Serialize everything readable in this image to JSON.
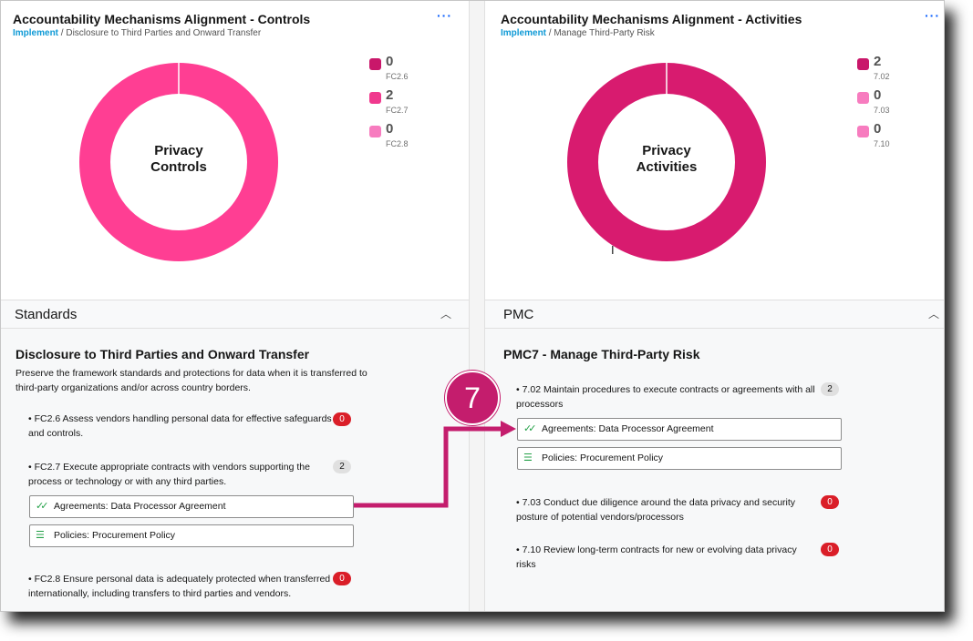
{
  "left_card": {
    "title": "Accountability Mechanisms Alignment - Controls",
    "breadcrumb_link": "Implement",
    "breadcrumb_rest": " / Disclosure to Third Parties and Onward Transfer",
    "menu": "···",
    "donut_label_line1": "Privacy",
    "donut_label_line2": "Controls",
    "legend": [
      {
        "value": "0",
        "label": "FC2.6",
        "color": "#c9176a"
      },
      {
        "value": "2",
        "label": "FC2.7",
        "color": "#f0398e"
      },
      {
        "value": "0",
        "label": "FC2.8",
        "color": "#f77cbf"
      }
    ]
  },
  "right_card": {
    "title": "Accountability Mechanisms Alignment - Activities",
    "breadcrumb_link": "Implement",
    "breadcrumb_rest": " / Manage Third-Party Risk",
    "menu": "···",
    "donut_label_line1": "Privacy",
    "donut_label_line2": "Activities",
    "legend": [
      {
        "value": "2",
        "label": "7.02",
        "color": "#c9176a"
      },
      {
        "value": "0",
        "label": "7.03",
        "color": "#f77cbf"
      },
      {
        "value": "0",
        "label": "7.10",
        "color": "#f77cbf"
      }
    ]
  },
  "chart_data": [
    {
      "type": "pie",
      "categories": [
        "FC2.6",
        "FC2.7",
        "FC2.8"
      ],
      "values": [
        0,
        2,
        0
      ],
      "title": "",
      "colors": [
        "#c9176a",
        "#ff3e93",
        "#f77cbf"
      ]
    },
    {
      "type": "pie",
      "categories": [
        "7.02",
        "7.03",
        "7.10"
      ],
      "values": [
        2,
        0,
        0
      ],
      "title": "",
      "colors": [
        "#d81b6f",
        "#f77cbf",
        "#f77cbf"
      ]
    }
  ],
  "left_section": {
    "header": "Standards",
    "title": "Disclosure to Third Parties and Onward Transfer",
    "desc_line1": "Preserve the framework standards and protections for data when it is transferred to",
    "desc_line2": "third-party organizations and/or across country borders.",
    "items": [
      {
        "line1": "• FC2.6 Assess vendors handling personal data for effective safeguards",
        "line2": "and controls.",
        "count": "0"
      },
      {
        "line1": "• FC2.7 Execute appropriate contracts with vendors supporting the",
        "line2": "process or technology or with any third parties.",
        "count": "2"
      },
      {
        "line1": "• FC2.8 Ensure personal data is adequately protected when transferred",
        "line2": "internationally, including transfers to third parties and vendors.",
        "count": "0"
      }
    ],
    "links": [
      "Agreements: Data Processor Agreement",
      "Policies: Procurement Policy"
    ]
  },
  "right_section": {
    "header": "PMC",
    "title": "PMC7 - Manage Third-Party Risk",
    "items": [
      {
        "line1": "• 7.02 Maintain procedures to execute contracts or agreements with all",
        "line2": "processors",
        "count": "2"
      },
      {
        "line1": "• 7.03 Conduct due diligence around the data privacy and security",
        "line2": "posture of potential vendors/processors",
        "count": "0"
      },
      {
        "line1": "• 7.10 Review long-term contracts for new or evolving data privacy",
        "line2": "risks",
        "count": "0"
      }
    ],
    "links": [
      "Agreements: Data Processor Agreement",
      "Policies: Procurement Policy"
    ]
  },
  "callout": {
    "number": "7",
    "color": "#c41d6d"
  }
}
